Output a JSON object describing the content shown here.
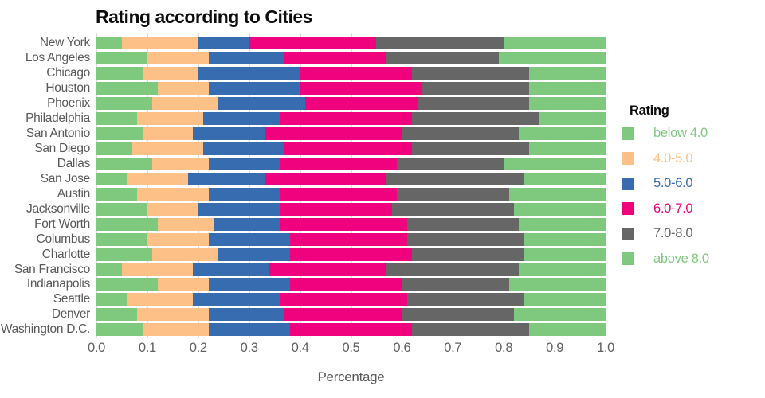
{
  "title": "Rating according to Cities",
  "axis": {
    "xlabel": "Percentage",
    "ticks": [
      "0.0",
      "0.1",
      "0.2",
      "0.3",
      "0.4",
      "0.5",
      "0.6",
      "0.7",
      "0.8",
      "0.9",
      "1.0"
    ],
    "grid_color": "#dcdcdc",
    "tick_color": "#606060",
    "label_color": "#595959"
  },
  "legend": {
    "title": "Rating",
    "entries": [
      {
        "label": "below 4.0",
        "color": "#7FC97F"
      },
      {
        "label": "4.0-5.0",
        "color": "#FDC086"
      },
      {
        "label": "5.0-6.0",
        "color": "#386CB0"
      },
      {
        "label": "6.0-7.0",
        "color": "#F0027F"
      },
      {
        "label": "7.0-8.0",
        "color": "#666666"
      },
      {
        "label": "above 8.0",
        "color": "#7FC97F"
      }
    ]
  },
  "chart_data": {
    "type": "bar",
    "orientation": "horizontal",
    "stacked": true,
    "title": "Rating according to Cities",
    "xlabel": "Percentage",
    "ylabel": "",
    "xlim": [
      0.0,
      1.0
    ],
    "grid": true,
    "legend_position": "right",
    "categories": [
      "New York",
      "Los Angeles",
      "Chicago",
      "Houston",
      "Phoenix",
      "Philadelphia",
      "San Antonio",
      "San Diego",
      "Dallas",
      "San Jose",
      "Austin",
      "Jacksonville",
      "Fort Worth",
      "Columbus",
      "Charlotte",
      "San Francisco",
      "Indianapolis",
      "Seattle",
      "Denver",
      "Washington D.C."
    ],
    "series": [
      {
        "name": "below 4.0",
        "color": "#7FC97F",
        "values": [
          0.05,
          0.1,
          0.09,
          0.12,
          0.11,
          0.08,
          0.09,
          0.07,
          0.11,
          0.06,
          0.08,
          0.1,
          0.12,
          0.1,
          0.11,
          0.05,
          0.12,
          0.06,
          0.08,
          0.09
        ]
      },
      {
        "name": "4.0-5.0",
        "color": "#FDC086",
        "values": [
          0.15,
          0.12,
          0.11,
          0.1,
          0.13,
          0.13,
          0.1,
          0.14,
          0.11,
          0.12,
          0.14,
          0.1,
          0.11,
          0.12,
          0.13,
          0.14,
          0.1,
          0.13,
          0.14,
          0.13
        ]
      },
      {
        "name": "5.0-6.0",
        "color": "#386CB0",
        "values": [
          0.1,
          0.15,
          0.2,
          0.18,
          0.17,
          0.15,
          0.14,
          0.16,
          0.14,
          0.15,
          0.14,
          0.16,
          0.13,
          0.16,
          0.14,
          0.15,
          0.16,
          0.17,
          0.15,
          0.16
        ]
      },
      {
        "name": "6.0-7.0",
        "color": "#F0027F",
        "values": [
          0.25,
          0.2,
          0.22,
          0.24,
          0.22,
          0.26,
          0.27,
          0.25,
          0.23,
          0.24,
          0.23,
          0.22,
          0.25,
          0.23,
          0.24,
          0.23,
          0.22,
          0.25,
          0.23,
          0.24
        ]
      },
      {
        "name": "7.0-8.0",
        "color": "#666666",
        "values": [
          0.25,
          0.22,
          0.23,
          0.21,
          0.22,
          0.25,
          0.23,
          0.23,
          0.21,
          0.27,
          0.22,
          0.24,
          0.22,
          0.23,
          0.22,
          0.26,
          0.21,
          0.23,
          0.22,
          0.23
        ]
      },
      {
        "name": "above 8.0",
        "color": "#7FC97F",
        "values": [
          0.2,
          0.21,
          0.15,
          0.15,
          0.15,
          0.13,
          0.17,
          0.15,
          0.2,
          0.16,
          0.19,
          0.18,
          0.17,
          0.16,
          0.16,
          0.17,
          0.19,
          0.16,
          0.18,
          0.15
        ]
      }
    ]
  }
}
